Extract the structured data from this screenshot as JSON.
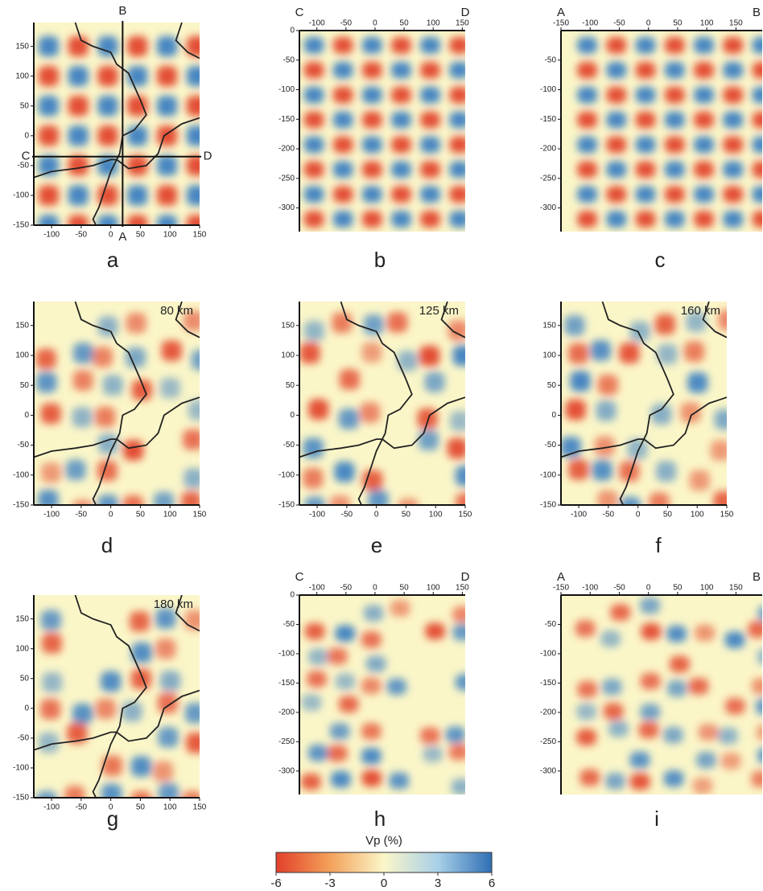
{
  "panels": [
    {
      "letter": "a",
      "xticks": [
        -100,
        -50,
        0,
        50,
        100,
        150
      ],
      "yticks": [
        150,
        100,
        50,
        0,
        -50,
        -100,
        -150
      ],
      "xlim": [
        -130,
        150
      ],
      "ylim": [
        -150,
        190
      ],
      "profile_labels": [
        "B",
        "A",
        "C",
        "D"
      ]
    },
    {
      "letter": "b",
      "xticks": [
        -100,
        -50,
        0,
        50,
        100,
        150
      ],
      "yticks": [
        0,
        -50,
        -100,
        -150,
        -200,
        -250,
        -300
      ],
      "xlim": [
        -130,
        155
      ],
      "ylim": [
        -340,
        0
      ],
      "section_ends": [
        "C",
        "D"
      ]
    },
    {
      "letter": "c",
      "xticks": [
        -150,
        -100,
        -50,
        0,
        50,
        100,
        150
      ],
      "yticks": [
        -50,
        -100,
        -150,
        -200,
        -250,
        -300
      ],
      "xlim": [
        -150,
        195
      ],
      "ylim": [
        -340,
        0
      ],
      "section_ends": [
        "A",
        "B"
      ]
    },
    {
      "letter": "d",
      "depth": "80 km",
      "xticks": [
        -100,
        -50,
        0,
        50,
        100,
        150
      ],
      "yticks": [
        150,
        100,
        50,
        0,
        -50,
        -100,
        -150
      ],
      "xlim": [
        -130,
        150
      ],
      "ylim": [
        -150,
        190
      ]
    },
    {
      "letter": "e",
      "depth": "125 km",
      "xticks": [
        -100,
        -50,
        0,
        50,
        100,
        150
      ],
      "yticks": [
        150,
        100,
        50,
        0,
        -50,
        -100,
        -150
      ],
      "xlim": [
        -130,
        150
      ],
      "ylim": [
        -150,
        190
      ]
    },
    {
      "letter": "f",
      "depth": "160 km",
      "xticks": [
        -100,
        -50,
        0,
        50,
        100,
        150
      ],
      "yticks": [
        150,
        100,
        50,
        0,
        -50,
        -100,
        -150
      ],
      "xlim": [
        -130,
        150
      ],
      "ylim": [
        -150,
        190
      ]
    },
    {
      "letter": "g",
      "depth": "180 km",
      "xticks": [
        -100,
        -50,
        0,
        50,
        100,
        150
      ],
      "yticks": [
        150,
        100,
        50,
        0,
        -50,
        -100,
        -150
      ],
      "xlim": [
        -130,
        150
      ],
      "ylim": [
        -150,
        190
      ]
    },
    {
      "letter": "h",
      "xticks": [
        -100,
        -50,
        0,
        50,
        100,
        150
      ],
      "yticks": [
        0,
        -50,
        -100,
        -150,
        -200,
        -250,
        -300
      ],
      "xlim": [
        -130,
        155
      ],
      "ylim": [
        -340,
        0
      ],
      "section_ends": [
        "C",
        "D"
      ]
    },
    {
      "letter": "i",
      "xticks": [
        -150,
        -100,
        -50,
        0,
        50,
        100,
        150
      ],
      "yticks": [
        -50,
        -100,
        -150,
        -200,
        -250,
        -300
      ],
      "xlim": [
        -150,
        195
      ],
      "ylim": [
        -340,
        0
      ],
      "section_ends": [
        "A",
        "B"
      ]
    }
  ],
  "colorbar": {
    "title": "Vp (%)",
    "ticks": [
      -6,
      -3,
      0,
      3,
      6
    ],
    "lim": [
      -6,
      6
    ]
  }
}
